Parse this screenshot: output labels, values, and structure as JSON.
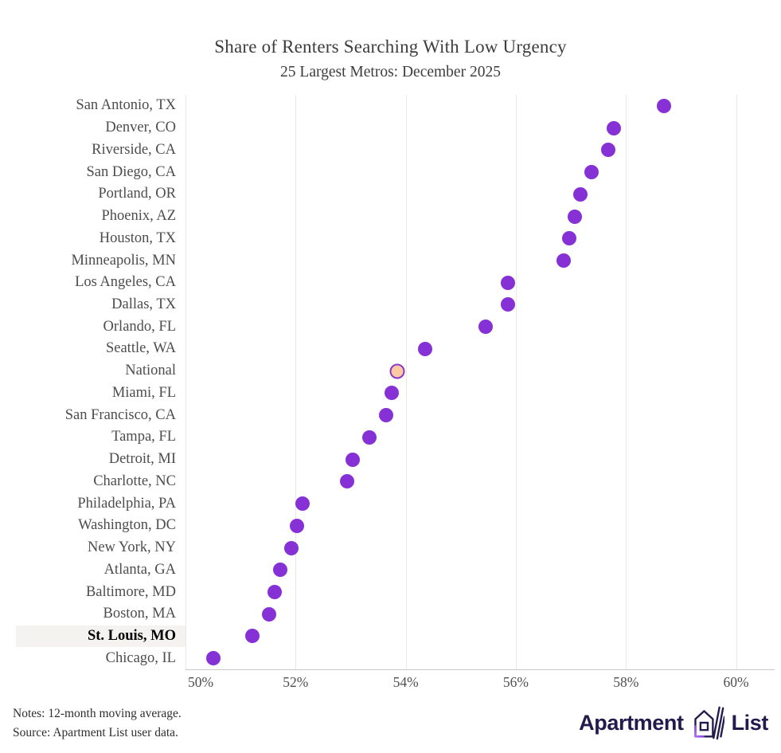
{
  "title": "Share of Renters Searching With Low Urgency",
  "subtitle": "25 Largest Metros: December 2025",
  "colors": {
    "dot": "#8531d6",
    "national_fill": "#fbcaa2",
    "national_stroke": "#8d36ca",
    "highlight_bg": "#f4f3f0",
    "label_text": "#4d4d4d",
    "tick_text": "#4f4f4f",
    "title_text": "#3d3d3d",
    "gridline": "#e8e8e8",
    "axis_line": "#c9c9c9",
    "logo_navy": "#241b4d",
    "logo_purple": "#8b3dd9"
  },
  "chart_data": {
    "type": "scatter",
    "subtype": "horizontal-dot-plot",
    "title": "Share of Renters Searching With Low Urgency",
    "subtitle": "25 Largest Metros: December 2025",
    "xlabel": "",
    "ylabel": "",
    "xlim": [
      50,
      60.7
    ],
    "x_ticks": [
      50,
      52,
      54,
      56,
      58,
      60
    ],
    "x_tick_labels": [
      "50%",
      "52%",
      "54%",
      "56%",
      "58%",
      "60%"
    ],
    "grid": "vertical-only",
    "unit": "percent",
    "categories": [
      "San Antonio, TX",
      "Denver, CO",
      "Riverside, CA",
      "San Diego, CA",
      "Portland, OR",
      "Phoenix, AZ",
      "Houston, TX",
      "Minneapolis, MN",
      "Los Angeles, CA",
      "Dallas, TX",
      "Orlando, FL",
      "Seattle, WA",
      "National",
      "Miami, FL",
      "San Francisco, CA",
      "Tampa, FL",
      "Detroit, MI",
      "Charlotte, NC",
      "Philadelphia, PA",
      "Washington, DC",
      "New York, NY",
      "Atlanta, GA",
      "Baltimore, MD",
      "Boston, MA",
      "St. Louis, MO",
      "Chicago, IL"
    ],
    "values": [
      58.6,
      57.7,
      57.6,
      57.3,
      57.1,
      57.0,
      56.9,
      56.8,
      55.8,
      55.8,
      55.4,
      54.3,
      53.8,
      53.7,
      53.6,
      53.3,
      53.0,
      52.9,
      52.1,
      52.0,
      51.9,
      51.7,
      51.6,
      51.5,
      51.2,
      50.5
    ],
    "highlighted_category": "St. Louis, MO",
    "national_category": "National"
  },
  "footer": {
    "note1": "Notes: 12-month moving average.",
    "note2": "Source: Apartment List user data."
  },
  "logo": {
    "word1": "Apartment",
    "word2": "List"
  }
}
